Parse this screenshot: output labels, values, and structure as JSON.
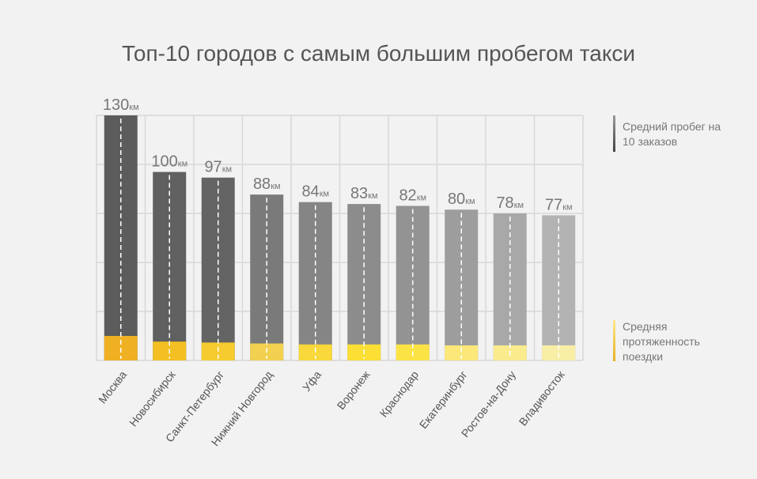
{
  "chart_data": {
    "type": "bar",
    "title": "Топ-10 городов с самым большим пробегом такси",
    "unit": "км",
    "categories": [
      "Москва",
      "Новосибирск",
      "Санкт-Петербург",
      "Нижний Новгород",
      "Уфа",
      "Воронеж",
      "Краснодар",
      "Екатеринбург",
      "Ростов-на-Дону",
      "Владивосток"
    ],
    "series": [
      {
        "name": "Средний пробег на 10 заказов",
        "values": [
          130,
          100,
          97,
          88,
          84,
          83,
          82,
          80,
          78,
          77
        ]
      },
      {
        "name": "Средняя протяженность поездки",
        "values": [
          13,
          10,
          9.5,
          9,
          8.5,
          8.5,
          8.5,
          8,
          8,
          8
        ]
      }
    ],
    "ylim": [
      0,
      130
    ],
    "grid": true,
    "legend_placement": "right",
    "colors": {
      "mileage": [
        "#5c5c5c",
        "#606060",
        "#646464",
        "#7a7a7a",
        "#858585",
        "#8c8c8c",
        "#939393",
        "#9d9d9d",
        "#a8a8a8",
        "#b3b3b3"
      ],
      "trip": [
        "#efb023",
        "#f3bf22",
        "#f6cb2f",
        "#f2d050",
        "#f8d83a",
        "#fbdf35",
        "#fce345",
        "#fbe77a",
        "#faeb8f",
        "#f9eea6"
      ],
      "grid": "#d8d8d8",
      "text": "#777777"
    }
  }
}
